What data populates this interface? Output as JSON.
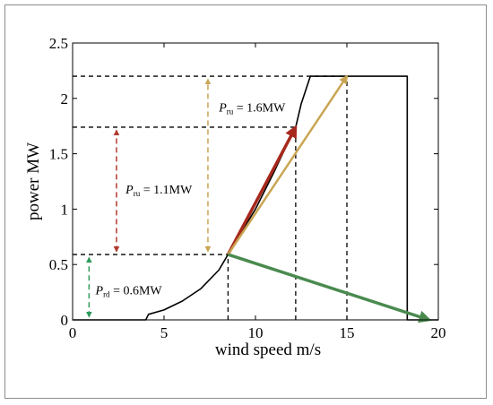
{
  "chart_data": {
    "type": "line",
    "title": "",
    "xlabel": "wind speed m/s",
    "ylabel": "power MW",
    "xlim": [
      0,
      20
    ],
    "ylim": [
      0,
      2.5
    ],
    "xticks": [
      0,
      5,
      10,
      15,
      20
    ],
    "yticks": [
      0,
      0.5,
      1,
      1.5,
      2,
      2.5
    ],
    "xtick_labels": [
      "0",
      "5",
      "10",
      "15",
      "20"
    ],
    "ytick_labels": [
      "0",
      "0.5",
      "1",
      "1.5",
      "2",
      "2.5"
    ],
    "grid": false,
    "series": [
      {
        "x": [
          0,
          4,
          4.15,
          5,
          6,
          7,
          8,
          8.5,
          9,
          10,
          11,
          12,
          12.2,
          12.5,
          13,
          13.3,
          15,
          18.3,
          18.3,
          20
        ],
        "y": [
          0,
          0,
          0.05,
          0.09,
          0.17,
          0.28,
          0.45,
          0.59,
          0.73,
          1.0,
          1.33,
          1.68,
          1.74,
          1.95,
          2.2,
          2.2,
          2.2,
          2.2,
          0,
          0
        ]
      }
    ],
    "reference_lines": [
      {
        "from": [
          0,
          0.59
        ],
        "to": [
          8.5,
          0.59
        ]
      },
      {
        "from": [
          8.5,
          0
        ],
        "to": [
          8.5,
          0.59
        ]
      },
      {
        "from": [
          0,
          1.74
        ],
        "to": [
          12.2,
          1.74
        ]
      },
      {
        "from": [
          12.2,
          0
        ],
        "to": [
          12.2,
          1.74
        ]
      },
      {
        "from": [
          0,
          2.2
        ],
        "to": [
          15,
          2.2
        ]
      },
      {
        "from": [
          15,
          0
        ],
        "to": [
          15,
          2.2
        ]
      }
    ],
    "arrows": [
      {
        "from": [
          8.5,
          0.59
        ],
        "to": [
          12.2,
          1.74
        ],
        "color": "#a6281c",
        "width": 3.5,
        "style": "solid",
        "double": false
      },
      {
        "from": [
          8.5,
          0.59
        ],
        "to": [
          15,
          2.2
        ],
        "color": "#c9a553",
        "width": 2.5,
        "style": "solid",
        "double": false
      },
      {
        "from": [
          8.5,
          0.59
        ],
        "to": [
          19.5,
          0
        ],
        "color": "#4a8a4f",
        "width": 3.5,
        "style": "solid",
        "double": false
      },
      {
        "from": [
          2.4,
          0.62
        ],
        "to": [
          2.4,
          1.71
        ],
        "color": "#b03a2e",
        "width": 1.5,
        "style": "dashed",
        "double": true
      },
      {
        "from": [
          7.4,
          0.62
        ],
        "to": [
          7.4,
          2.17
        ],
        "color": "#c9a553",
        "width": 1.5,
        "style": "dashed",
        "double": true
      },
      {
        "from": [
          0.9,
          0.03
        ],
        "to": [
          0.9,
          0.56
        ],
        "color": "#2e9a5a",
        "width": 1.5,
        "style": "dashed",
        "double": true
      }
    ],
    "annotations": [
      {
        "symbol": "P",
        "sub": "ru",
        "text": " = 1.6MW",
        "x": 8.0,
        "y": 1.92
      },
      {
        "symbol": "P",
        "sub": "ru",
        "text": " = 1.1MW",
        "x": 2.9,
        "y": 1.18
      },
      {
        "symbol": "P",
        "sub": "rd",
        "text": " = 0.6MW",
        "x": 1.25,
        "y": 0.27
      }
    ]
  }
}
